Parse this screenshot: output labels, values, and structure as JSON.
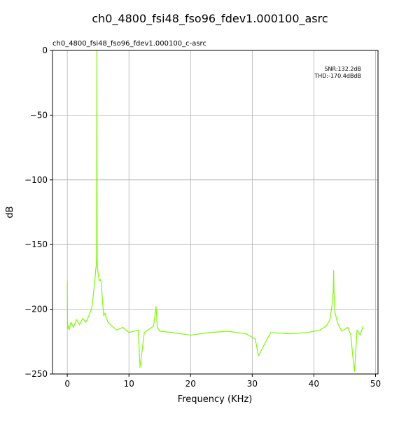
{
  "chart_data": {
    "type": "line",
    "title": "ch0_4800_fsi48_fso96_fdev1.000100_asrc",
    "subtitle": "ch0_4800_fsi48_fso96_fdev1.000100_c-asrc",
    "xlabel": "Frequency (KHz)",
    "ylabel": "dB",
    "xlim": [
      -2.4,
      50.4
    ],
    "ylim": [
      -250,
      0
    ],
    "xticks": [
      0,
      10,
      20,
      30,
      40,
      50
    ],
    "yticks": [
      0,
      -50,
      -100,
      -150,
      -200,
      -250
    ],
    "grid": true,
    "annotations": [
      "SNR:132.2dB",
      "THD:-170.4dBdB"
    ],
    "series": [
      {
        "color": "#7cfc00",
        "x": [
          0,
          0.05,
          0.1,
          0.3,
          0.6,
          1.0,
          1.5,
          2.0,
          2.5,
          3.0,
          3.5,
          3.9,
          4.1,
          4.3,
          4.5,
          4.6,
          4.7,
          4.75,
          4.8,
          4.85,
          4.9,
          5.0,
          5.1,
          5.2,
          5.35,
          5.5,
          5.7,
          5.9,
          6.1,
          6.3,
          6.6,
          7.0,
          8.0,
          9.0,
          10.0,
          11.5,
          11.8,
          12.5,
          14.0,
          14.4,
          14.6,
          15.0,
          17.0,
          20.0,
          23.0,
          26.0,
          29.0,
          30.5,
          31.0,
          33.0,
          36.0,
          39.0,
          41.0,
          42.0,
          42.6,
          43.0,
          43.15,
          43.2,
          43.25,
          43.4,
          43.8,
          44.5,
          45.5,
          46.0,
          46.3,
          46.6,
          47.0,
          47.5,
          48.0
        ],
        "y": [
          -178,
          -215,
          -212,
          -216,
          -210,
          -214,
          -208,
          -212,
          -207,
          -210,
          -205,
          -200,
          -195,
          -185,
          -176,
          -170,
          -166,
          -160,
          0,
          -160,
          -168,
          -172,
          -175,
          -178,
          -177,
          -179,
          -193,
          -205,
          -203,
          -206,
          -210,
          -212,
          -216,
          -214,
          -218,
          -216,
          -245,
          -218,
          -213,
          -198,
          -214,
          -217,
          -218,
          -220,
          -218,
          -217,
          -219,
          -223,
          -236,
          -218,
          -219,
          -218,
          -216,
          -213,
          -208,
          -195,
          -185,
          -170,
          -185,
          -202,
          -210,
          -217,
          -214,
          -220,
          -236,
          -248,
          -216,
          -220,
          -213
        ]
      }
    ]
  }
}
